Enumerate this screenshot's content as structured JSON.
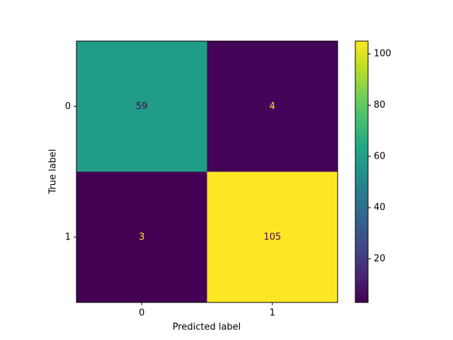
{
  "chart_data": {
    "type": "heatmap",
    "xlabel": "Predicted label",
    "ylabel": "True label",
    "x_categories": [
      "0",
      "1"
    ],
    "y_categories": [
      "0",
      "1"
    ],
    "values": [
      [
        59,
        4
      ],
      [
        3,
        105
      ]
    ],
    "colormap": "viridis",
    "colorbar": {
      "lim": [
        3,
        105
      ],
      "ticks": [
        20,
        40,
        60,
        80,
        100
      ]
    }
  }
}
